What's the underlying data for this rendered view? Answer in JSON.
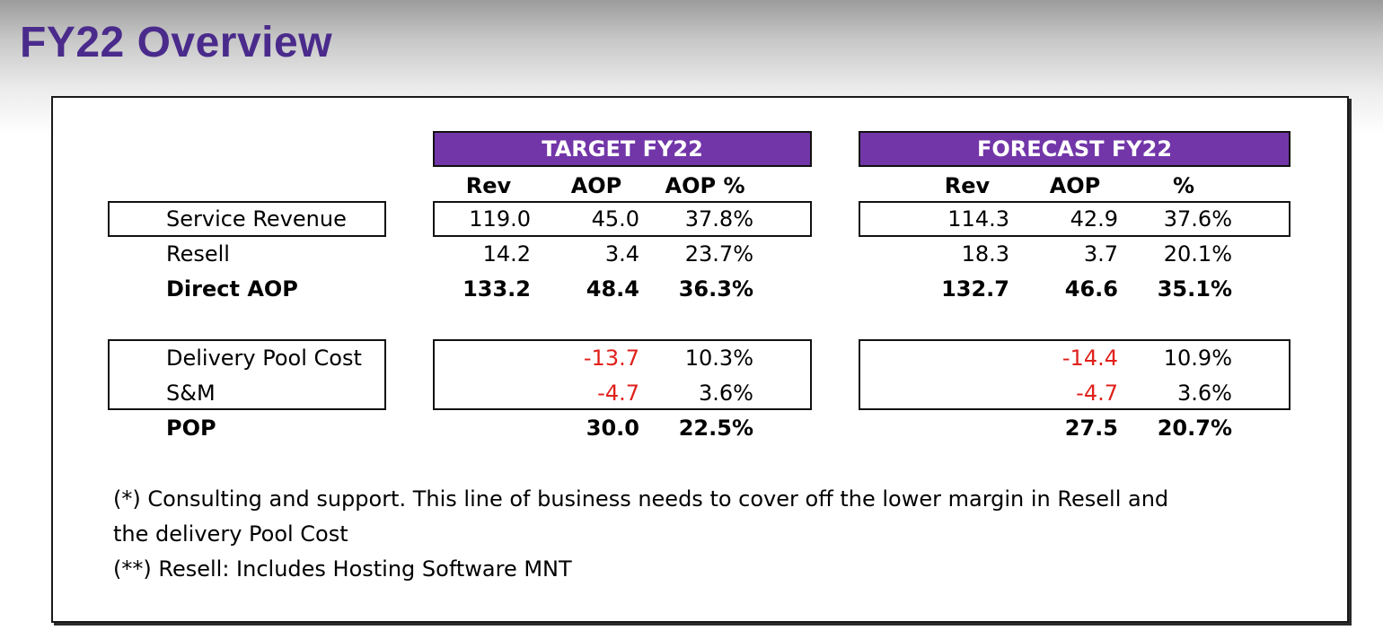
{
  "title": "FY22 Overview",
  "groups": [
    {
      "name": "TARGET FY22",
      "columns": [
        "Rev",
        "AOP",
        "AOP %"
      ]
    },
    {
      "name": "FORECAST FY22",
      "columns": [
        "Rev",
        "AOP",
        "%"
      ]
    }
  ],
  "rows": [
    {
      "label": "Service Revenue",
      "target": [
        "119.0",
        "45.0",
        "37.8%"
      ],
      "forecast": [
        "114.3",
        "42.9",
        "37.6%"
      ]
    },
    {
      "label": "Resell",
      "target": [
        "14.2",
        "3.4",
        "23.7%"
      ],
      "forecast": [
        "18.3",
        "3.7",
        "20.1%"
      ]
    },
    {
      "label": "Direct AOP",
      "target": [
        "133.2",
        "48.4",
        "36.3%"
      ],
      "forecast": [
        "132.7",
        "46.6",
        "35.1%"
      ]
    },
    {
      "label": "Delivery Pool Cost",
      "target": [
        "",
        "-13.7",
        "10.3%"
      ],
      "forecast": [
        "",
        "-14.4",
        "10.9%"
      ]
    },
    {
      "label": "S&M",
      "target": [
        "",
        "-4.7",
        "3.6%"
      ],
      "forecast": [
        "",
        "-4.7",
        "3.6%"
      ]
    },
    {
      "label": "POP",
      "target": [
        "",
        "30.0",
        "22.5%"
      ],
      "forecast": [
        "",
        "27.5",
        "20.7%"
      ]
    }
  ],
  "footnotes": [
    "(*) Consulting and support. This line of business needs to cover off the lower margin in Resell and",
    "the delivery Pool Cost",
    "(**) Resell: Includes Hosting Software MNT"
  ],
  "colors": {
    "title": "#4a2b8c",
    "header_fill": "#7236a8",
    "header_text": "#ffffff",
    "negative": "#e0201b"
  }
}
